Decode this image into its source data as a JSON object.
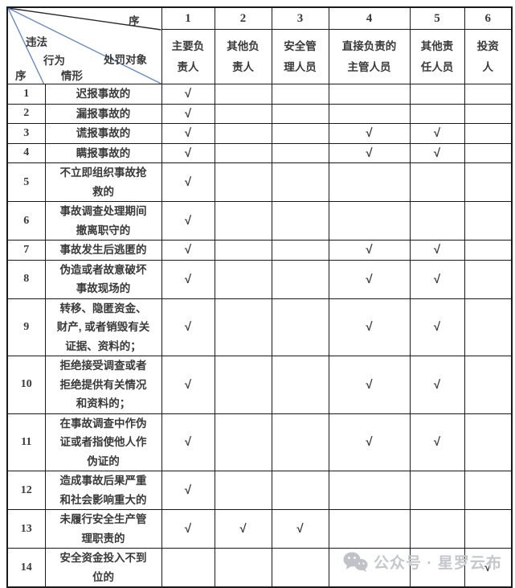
{
  "table": {
    "corner": {
      "column_axis_label": "序",
      "punish_target_label": "处罚对象",
      "violation_label_lines": [
        "违法",
        "行为",
        "情形"
      ],
      "row_axis_label": "序"
    },
    "columns": [
      {
        "num": "1",
        "label": "主要负\n责人"
      },
      {
        "num": "2",
        "label": "其他负\n责人"
      },
      {
        "num": "3",
        "label": "安全管\n理人员"
      },
      {
        "num": "4",
        "label": "直接负责的\n主管人员"
      },
      {
        "num": "5",
        "label": "其他责\n任人员"
      },
      {
        "num": "6",
        "label": "投资\n人"
      }
    ],
    "check_glyph": "√",
    "rows": [
      {
        "num": "1",
        "text": "迟报事故的",
        "checks": [
          1
        ]
      },
      {
        "num": "2",
        "text": "漏报事故的",
        "checks": [
          1
        ]
      },
      {
        "num": "3",
        "text": "谎报事故的",
        "checks": [
          1,
          4,
          5
        ]
      },
      {
        "num": "4",
        "text": "瞒报事故的",
        "checks": [
          1,
          4,
          5
        ]
      },
      {
        "num": "5",
        "text": "不立即组织事故抢\n救的",
        "checks": [
          1
        ]
      },
      {
        "num": "6",
        "text": "事故调查处理期间\n撤离职守的",
        "checks": [
          1
        ]
      },
      {
        "num": "7",
        "text": "事故发生后逃匿的",
        "checks": [
          1,
          4,
          5
        ]
      },
      {
        "num": "8",
        "text": "伪造或者故意破坏\n事故现场的",
        "checks": [
          1,
          4,
          5
        ]
      },
      {
        "num": "9",
        "text": "转移、隐匿资金、\n财产, 或者销毁有关\n证据、资料的；",
        "checks": [
          1,
          4,
          5
        ]
      },
      {
        "num": "10",
        "text": "拒绝接受调查或者\n拒绝提供有关情况\n和资料的；",
        "checks": [
          1,
          4,
          5
        ]
      },
      {
        "num": "11",
        "text": "在事故调查中作伪\n证或者指使他人作\n伪证的",
        "checks": [
          1,
          4,
          5
        ]
      },
      {
        "num": "12",
        "text": "造成事故后果严重\n和社会影响重大的",
        "checks": [
          1
        ]
      },
      {
        "num": "13",
        "text": "未履行安全生产管\n理职责的",
        "checks": [
          1,
          2,
          3
        ]
      },
      {
        "num": "14",
        "text": "安全资金投入不到\n位的",
        "checks": [
          6
        ]
      }
    ]
  },
  "watermark": {
    "icon": "wechat-icon",
    "text": "公众号 · 星罗云布"
  },
  "colors": {
    "border": "#1a1a1a",
    "text": "#3a3a3a",
    "diagonal_blue": "#6488cc",
    "diagonal_black": "#2a2a2a",
    "watermark_gray": "#c4c7cb"
  }
}
